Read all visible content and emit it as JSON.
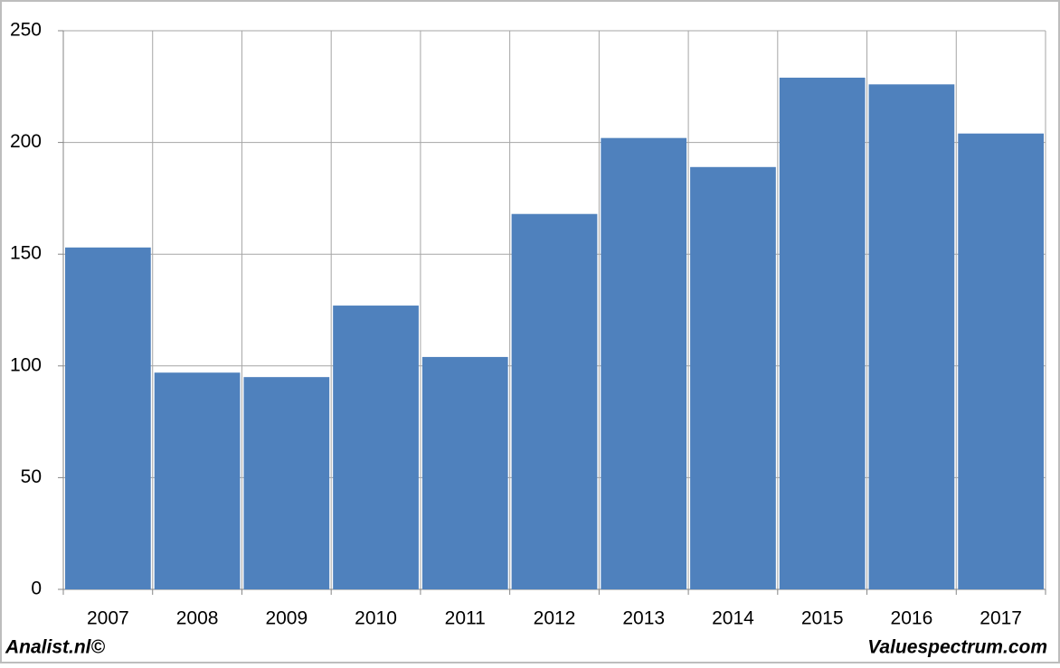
{
  "chart_data": {
    "type": "bar",
    "categories": [
      "2007",
      "2008",
      "2009",
      "2010",
      "2011",
      "2012",
      "2013",
      "2014",
      "2015",
      "2016",
      "2017"
    ],
    "values": [
      153,
      97,
      95,
      127,
      104,
      168,
      202,
      189,
      229,
      226,
      204
    ],
    "color": "#4f81bd",
    "ylim": [
      0,
      250
    ],
    "yticks": [
      0,
      50,
      100,
      150,
      200,
      250
    ],
    "grid": true
  },
  "footer": {
    "left": "Analist.nl©",
    "right": "Valuespectrum.com"
  }
}
